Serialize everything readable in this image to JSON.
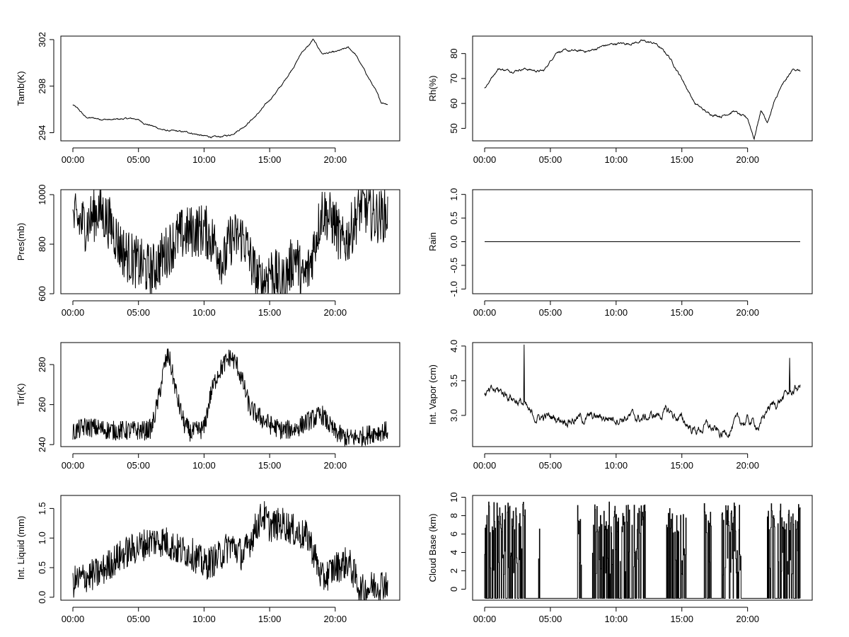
{
  "chart_data": [
    {
      "type": "line",
      "ylabel": "Tamb(K)",
      "xticks": [
        "00:00",
        "05:00",
        "10:00",
        "15:00",
        "20:00"
      ],
      "xlim": [
        0,
        24
      ],
      "ylim": [
        293.3,
        302.3
      ],
      "yticks": [
        294,
        298,
        302
      ],
      "shape": "smooth",
      "noise": 0.09,
      "series": [
        {
          "x": [
            0,
            0.5,
            1,
            2,
            3,
            4,
            4.8,
            5.5,
            6,
            7,
            8,
            9,
            10,
            11,
            12,
            13,
            14,
            15,
            16,
            17,
            17.5,
            18,
            18.3,
            19,
            20,
            21,
            21.5,
            22,
            23,
            23.5,
            24
          ],
          "y": [
            296.4,
            295.9,
            295.3,
            295.2,
            295.1,
            295.2,
            295.2,
            294.8,
            294.6,
            294.2,
            294.1,
            294.0,
            293.7,
            293.6,
            293.8,
            294.5,
            295.5,
            296.8,
            298.2,
            300.0,
            301.0,
            301.5,
            302.0,
            300.8,
            300.9,
            301.3,
            300.8,
            299.8,
            297.8,
            296.6,
            296.5
          ]
        }
      ]
    },
    {
      "type": "line",
      "ylabel": "Rh(%)",
      "xticks": [
        "00:00",
        "05:00",
        "10:00",
        "15:00",
        "20:00"
      ],
      "xlim": [
        0,
        24
      ],
      "ylim": [
        45,
        87
      ],
      "yticks": [
        50,
        60,
        70,
        80
      ],
      "shape": "smooth",
      "noise": 0.6,
      "series": [
        {
          "x": [
            0,
            0.5,
            1,
            2,
            3,
            4,
            4.5,
            5,
            5.5,
            7,
            8,
            9,
            10,
            11,
            12,
            13,
            14,
            15,
            16,
            17,
            18,
            19,
            19.5,
            20,
            20.5,
            21,
            21.2,
            21.5,
            22,
            22.5,
            23,
            23.5,
            24
          ],
          "y": [
            66,
            70,
            74,
            73,
            74,
            73,
            73,
            77,
            81,
            81,
            81,
            83,
            84,
            84,
            85,
            84,
            79,
            70,
            60,
            56,
            55,
            57,
            55,
            54,
            46,
            57,
            56,
            52,
            60,
            66,
            70,
            74,
            73
          ]
        }
      ]
    },
    {
      "type": "line",
      "ylabel": "Pres(mb)",
      "xticks": [
        "00:00",
        "05:00",
        "10:00",
        "15:00",
        "20:00"
      ],
      "xlim": [
        0,
        24
      ],
      "ylim": [
        600,
        1020
      ],
      "yticks": [
        600,
        800,
        1000
      ],
      "shape": "spiky",
      "noise": 110,
      "series": [
        {
          "x": [
            0,
            1,
            2,
            3,
            3.5,
            4,
            5,
            6,
            7,
            8,
            9,
            10,
            11,
            11.5,
            12,
            13,
            14,
            14.5,
            15,
            16,
            17,
            17.5,
            18,
            19,
            20,
            20.5,
            21,
            22,
            23,
            24
          ],
          "y": [
            900,
            880,
            940,
            870,
            800,
            760,
            720,
            690,
            760,
            830,
            850,
            860,
            790,
            720,
            820,
            830,
            660,
            640,
            700,
            640,
            760,
            650,
            700,
            940,
            880,
            800,
            830,
            960,
            910,
            920
          ]
        }
      ]
    },
    {
      "type": "line",
      "ylabel": "Rain",
      "xticks": [
        "00:00",
        "05:00",
        "10:00",
        "15:00",
        "20:00"
      ],
      "xlim": [
        0,
        24
      ],
      "ylim": [
        -1.1,
        1.1
      ],
      "yticks": [
        -1.0,
        -0.5,
        0.0,
        0.5,
        1.0
      ],
      "ytick_labels": [
        "-1.0",
        "-0.5",
        "0.0",
        "0.5",
        "1.0"
      ],
      "shape": "flat",
      "noise": 0,
      "series": [
        {
          "x": [
            0,
            24
          ],
          "y": [
            0,
            0
          ]
        }
      ]
    },
    {
      "type": "line",
      "ylabel": "Tir(K)",
      "xticks": [
        "00:00",
        "05:00",
        "10:00",
        "15:00",
        "20:00"
      ],
      "xlim": [
        0,
        24
      ],
      "ylim": [
        239,
        291
      ],
      "yticks": [
        240,
        260,
        280
      ],
      "shape": "spiky",
      "noise": 5,
      "series": [
        {
          "x": [
            0,
            0.3,
            1,
            2,
            3,
            4,
            5,
            5.5,
            6,
            6.5,
            7,
            7.3,
            8,
            8.5,
            9,
            10,
            10.5,
            11,
            11.5,
            12,
            12.5,
            13,
            13.5,
            14,
            15,
            16,
            17,
            18,
            19,
            19.5,
            20,
            21,
            22,
            23,
            24
          ],
          "y": [
            246,
            247,
            249,
            248,
            247,
            247,
            247,
            247,
            248,
            262,
            280,
            285,
            262,
            250,
            246,
            248,
            265,
            275,
            280,
            284,
            280,
            270,
            258,
            255,
            250,
            247,
            248,
            252,
            255,
            250,
            246,
            243,
            244,
            246,
            247
          ]
        }
      ]
    },
    {
      "type": "line",
      "ylabel": "Int. Vapor (cm)",
      "xticks": [
        "00:00",
        "05:00",
        "10:00",
        "15:00",
        "20:00"
      ],
      "xlim": [
        0,
        24
      ],
      "ylim": [
        2.55,
        4.05
      ],
      "yticks": [
        3.0,
        3.5,
        4.0
      ],
      "ytick_labels": [
        "3.0",
        "3.5",
        "4.0"
      ],
      "shape": "smooth",
      "noise": 0.09,
      "spikes": [
        {
          "x": 3.0,
          "y": 4.02
        },
        {
          "x": 23.2,
          "y": 3.83
        }
      ],
      "series": [
        {
          "x": [
            0,
            1,
            2,
            3,
            3.5,
            5,
            7,
            9,
            11,
            12,
            13,
            14,
            15,
            16,
            17,
            18,
            19,
            20,
            21,
            21.5,
            22,
            23,
            24
          ],
          "y": [
            3.28,
            3.35,
            3.28,
            3.15,
            2.98,
            2.97,
            2.95,
            2.97,
            2.98,
            2.95,
            3.0,
            3.05,
            2.93,
            2.78,
            2.85,
            2.7,
            2.88,
            2.92,
            2.85,
            3.1,
            3.15,
            3.3,
            3.42
          ]
        }
      ]
    },
    {
      "type": "line",
      "ylabel": "Int. Liquid (mm)",
      "xticks": [
        "00:00",
        "05:00",
        "10:00",
        "15:00",
        "20:00"
      ],
      "xlim": [
        0,
        24
      ],
      "ylim": [
        -0.05,
        1.72
      ],
      "yticks": [
        0.0,
        0.5,
        1.0,
        1.5
      ],
      "ytick_labels": [
        "0.0",
        "0.5",
        "1.0",
        "1.5"
      ],
      "shape": "spiky",
      "noise": 0.28,
      "series": [
        {
          "x": [
            0,
            1,
            2,
            3,
            4,
            5,
            6,
            7,
            8,
            9,
            10,
            11,
            12,
            13,
            14,
            14.5,
            15,
            16,
            17,
            18,
            19,
            20,
            21,
            22,
            23,
            24
          ],
          "y": [
            0.25,
            0.35,
            0.4,
            0.6,
            0.75,
            0.85,
            0.95,
            0.95,
            0.8,
            0.75,
            0.55,
            0.65,
            0.9,
            0.7,
            1.2,
            1.4,
            1.2,
            1.25,
            1.1,
            1.0,
            0.3,
            0.5,
            0.6,
            0.1,
            0.2,
            0.25
          ]
        }
      ]
    },
    {
      "type": "line",
      "ylabel": "Cloud Base (km)",
      "xticks": [
        "00:00",
        "05:00",
        "10:00",
        "15:00",
        "20:00"
      ],
      "xlim": [
        0,
        24
      ],
      "ylim": [
        -1.2,
        10.2
      ],
      "yticks": [
        0,
        2,
        4,
        6,
        8,
        10
      ],
      "shape": "binary",
      "baseline": -1,
      "active_ranges": [
        [
          0,
          3.1
        ],
        [
          4.1,
          4.2
        ],
        [
          7.0,
          7.4
        ],
        [
          8.2,
          11.0
        ],
        [
          11.2,
          12.2
        ],
        [
          13.8,
          15.3
        ],
        [
          16.7,
          17.2
        ],
        [
          17.9,
          19.5
        ],
        [
          21.5,
          24
        ]
      ],
      "levels": [
        3,
        9.5
      ],
      "series": [
        {
          "x": [
            0,
            24
          ],
          "y": [
            -1,
            -1
          ]
        }
      ]
    }
  ]
}
